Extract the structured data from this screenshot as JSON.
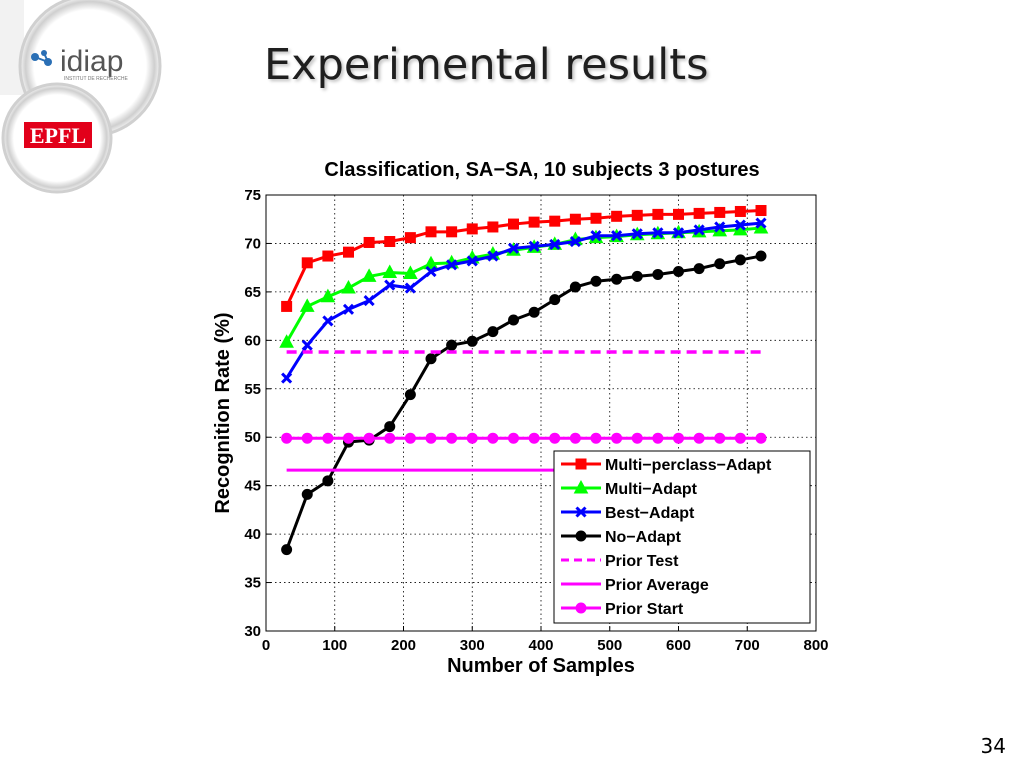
{
  "slide": {
    "title": "Experimental results",
    "page_number": "34"
  },
  "logos": {
    "idiap_text": "idiap",
    "idiap_subtext": "INSTITUT DE RECHERCHE",
    "epfl_text": "EPFL"
  },
  "colors": {
    "multi_perclass": "#ff0000",
    "multi": "#00ff00",
    "best": "#0000ff",
    "no_adapt": "#000000",
    "prior": "#ff00ff",
    "epfl_red": "#e2001a"
  },
  "chart_data": {
    "type": "line",
    "title": "Classification, SA−SA, 10 subjects 3 postures",
    "xlabel": "Number of Samples",
    "ylabel": "Recognition Rate (%)",
    "xlim": [
      0,
      800
    ],
    "ylim": [
      30,
      75
    ],
    "xticks": [
      0,
      100,
      200,
      300,
      400,
      500,
      600,
      700,
      800
    ],
    "yticks": [
      30,
      35,
      40,
      45,
      50,
      55,
      60,
      65,
      70,
      75
    ],
    "grid": true,
    "legend_position": "bottom-right",
    "x": [
      30,
      60,
      90,
      120,
      150,
      180,
      210,
      240,
      270,
      300,
      330,
      360,
      390,
      420,
      450,
      480,
      510,
      540,
      570,
      600,
      630,
      660,
      690,
      720
    ],
    "series": [
      {
        "name": "Multi−perclass−Adapt",
        "color": "#ff0000",
        "marker": "square",
        "style": "solid",
        "values": [
          63.5,
          68.0,
          68.7,
          69.1,
          70.1,
          70.2,
          70.6,
          71.2,
          71.2,
          71.5,
          71.7,
          72.0,
          72.2,
          72.3,
          72.5,
          72.6,
          72.8,
          72.9,
          73.0,
          73.0,
          73.1,
          73.2,
          73.3,
          73.4
        ]
      },
      {
        "name": "Multi−Adapt",
        "color": "#00ff00",
        "marker": "triangle",
        "style": "solid",
        "values": [
          59.8,
          63.5,
          64.5,
          65.4,
          66.6,
          67.0,
          66.9,
          67.9,
          68.0,
          68.5,
          68.9,
          69.3,
          69.6,
          69.9,
          70.4,
          70.6,
          70.7,
          70.9,
          71.0,
          71.1,
          71.2,
          71.3,
          71.4,
          71.6
        ]
      },
      {
        "name": "Best−Adapt",
        "color": "#0000ff",
        "marker": "x",
        "style": "solid",
        "values": [
          56.1,
          59.5,
          62.0,
          63.2,
          64.1,
          65.7,
          65.4,
          67.1,
          67.8,
          68.2,
          68.7,
          69.5,
          69.7,
          69.9,
          70.2,
          70.8,
          70.8,
          71.0,
          71.1,
          71.1,
          71.4,
          71.7,
          71.9,
          72.1
        ]
      },
      {
        "name": "No−Adapt",
        "color": "#000000",
        "marker": "circle",
        "style": "solid",
        "values": [
          38.4,
          44.1,
          45.5,
          49.5,
          49.7,
          51.1,
          54.4,
          58.1,
          59.5,
          59.9,
          60.9,
          62.1,
          62.9,
          64.2,
          65.5,
          66.1,
          66.3,
          66.6,
          66.8,
          67.1,
          67.4,
          67.9,
          68.3,
          68.7
        ]
      },
      {
        "name": "Prior Test",
        "color": "#ff00ff",
        "marker": "none",
        "style": "dashed",
        "values": [
          58.8,
          58.8,
          58.8,
          58.8,
          58.8,
          58.8,
          58.8,
          58.8,
          58.8,
          58.8,
          58.8,
          58.8,
          58.8,
          58.8,
          58.8,
          58.8,
          58.8,
          58.8,
          58.8,
          58.8,
          58.8,
          58.8,
          58.8,
          58.8
        ]
      },
      {
        "name": "Prior Average",
        "color": "#ff00ff",
        "marker": "none",
        "style": "solid",
        "values": [
          46.6,
          46.6,
          46.6,
          46.6,
          46.6,
          46.6,
          46.6,
          46.6,
          46.6,
          46.6,
          46.6,
          46.6,
          46.6,
          46.6,
          46.6,
          46.6,
          46.6,
          46.6,
          46.6,
          46.6,
          46.6,
          46.6,
          46.6,
          46.6
        ]
      },
      {
        "name": "Prior Start",
        "color": "#ff00ff",
        "marker": "circle",
        "style": "solid",
        "values": [
          49.9,
          49.9,
          49.9,
          49.9,
          49.9,
          49.9,
          49.9,
          49.9,
          49.9,
          49.9,
          49.9,
          49.9,
          49.9,
          49.9,
          49.9,
          49.9,
          49.9,
          49.9,
          49.9,
          49.9,
          49.9,
          49.9,
          49.9,
          49.9
        ]
      }
    ]
  }
}
